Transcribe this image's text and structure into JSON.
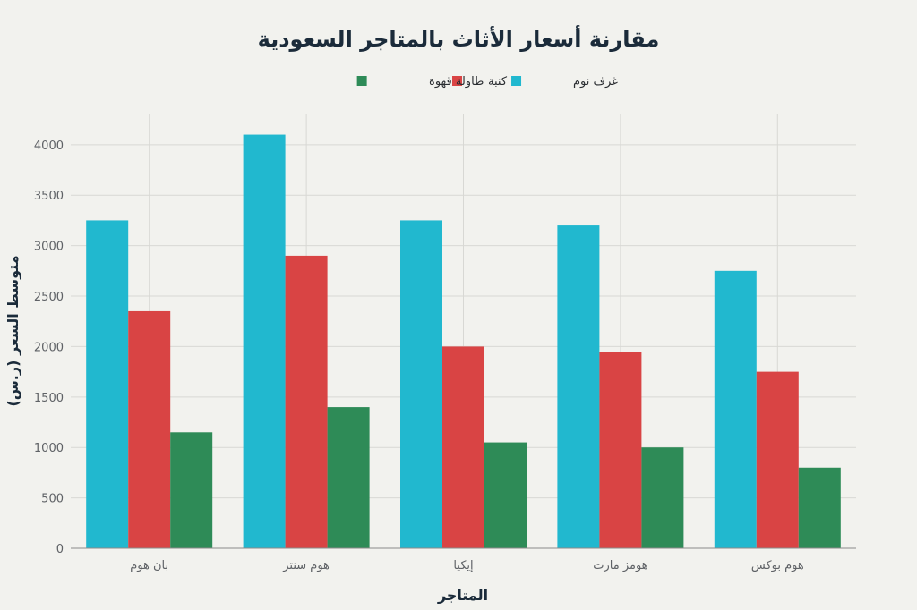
{
  "chart_data": {
    "type": "bar",
    "title": "مقارنة أسعار الأثاث بالمتاجر السعودية",
    "xlabel": "المتاجر",
    "ylabel": "متوسط السعر (ر.س)",
    "categories": [
      "بان هوم",
      "هوم سنتر",
      "إيكيا",
      "هومز مارت",
      "هوم بوكس"
    ],
    "series": [
      {
        "name": "غرف نوم",
        "color": "#21b8cf",
        "values": [
          3250,
          4100,
          3250,
          3200,
          2750
        ]
      },
      {
        "name": "كنبة",
        "color": "#d94444",
        "values": [
          2350,
          2900,
          2000,
          1950,
          1750
        ]
      },
      {
        "name": "طاولة قهوة",
        "color": "#2e8b57",
        "values": [
          1150,
          1400,
          1050,
          1000,
          800
        ]
      }
    ],
    "ylim": [
      0,
      4300
    ],
    "yticks": [
      0,
      500,
      1000,
      1500,
      2000,
      2500,
      3000,
      3500,
      4000
    ],
    "grid": true,
    "legend_position": "top-center"
  }
}
